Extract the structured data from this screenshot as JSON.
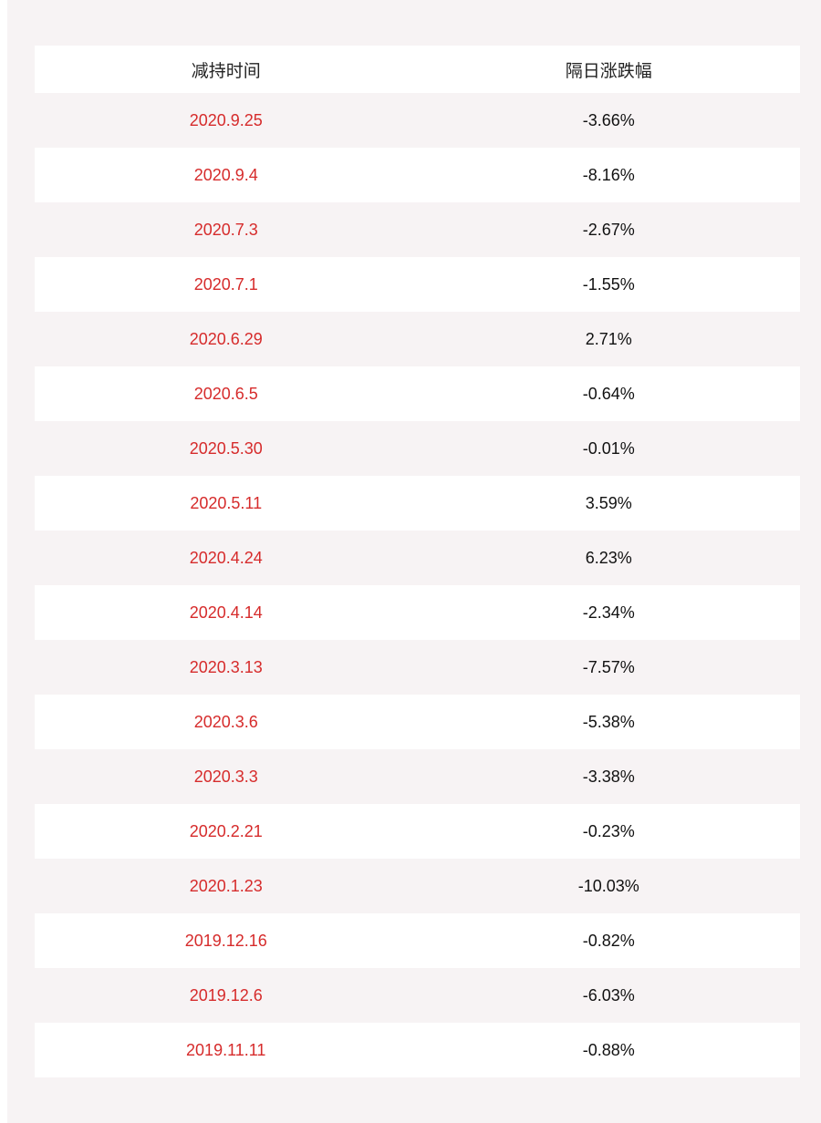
{
  "table": {
    "headers": [
      "减持时间",
      "隔日涨跌幅"
    ],
    "rows": [
      {
        "date": "2020.9.25",
        "change": "-3.66%"
      },
      {
        "date": "2020.9.4",
        "change": "-8.16%"
      },
      {
        "date": "2020.7.3",
        "change": "-2.67%"
      },
      {
        "date": "2020.7.1",
        "change": "-1.55%"
      },
      {
        "date": "2020.6.29",
        "change": "2.71%"
      },
      {
        "date": "2020.6.5",
        "change": "-0.64%"
      },
      {
        "date": "2020.5.30",
        "change": "-0.01%"
      },
      {
        "date": "2020.5.11",
        "change": "3.59%"
      },
      {
        "date": "2020.4.24",
        "change": "6.23%"
      },
      {
        "date": "2020.4.14",
        "change": "-2.34%"
      },
      {
        "date": "2020.3.13",
        "change": "-7.57%"
      },
      {
        "date": "2020.3.6",
        "change": "-5.38%"
      },
      {
        "date": "2020.3.3",
        "change": "-3.38%"
      },
      {
        "date": "2020.2.21",
        "change": "-0.23%"
      },
      {
        "date": "2020.1.23",
        "change": "-10.03%"
      },
      {
        "date": "2019.12.16",
        "change": "-0.82%"
      },
      {
        "date": "2019.12.6",
        "change": "-6.03%"
      },
      {
        "date": "2019.11.11",
        "change": "-0.88%"
      }
    ]
  },
  "colors": {
    "date_text": "#d62b2b",
    "change_text": "#111111",
    "header_text": "#222222",
    "stripe": "#f7f3f4",
    "row_bg": "#ffffff"
  }
}
